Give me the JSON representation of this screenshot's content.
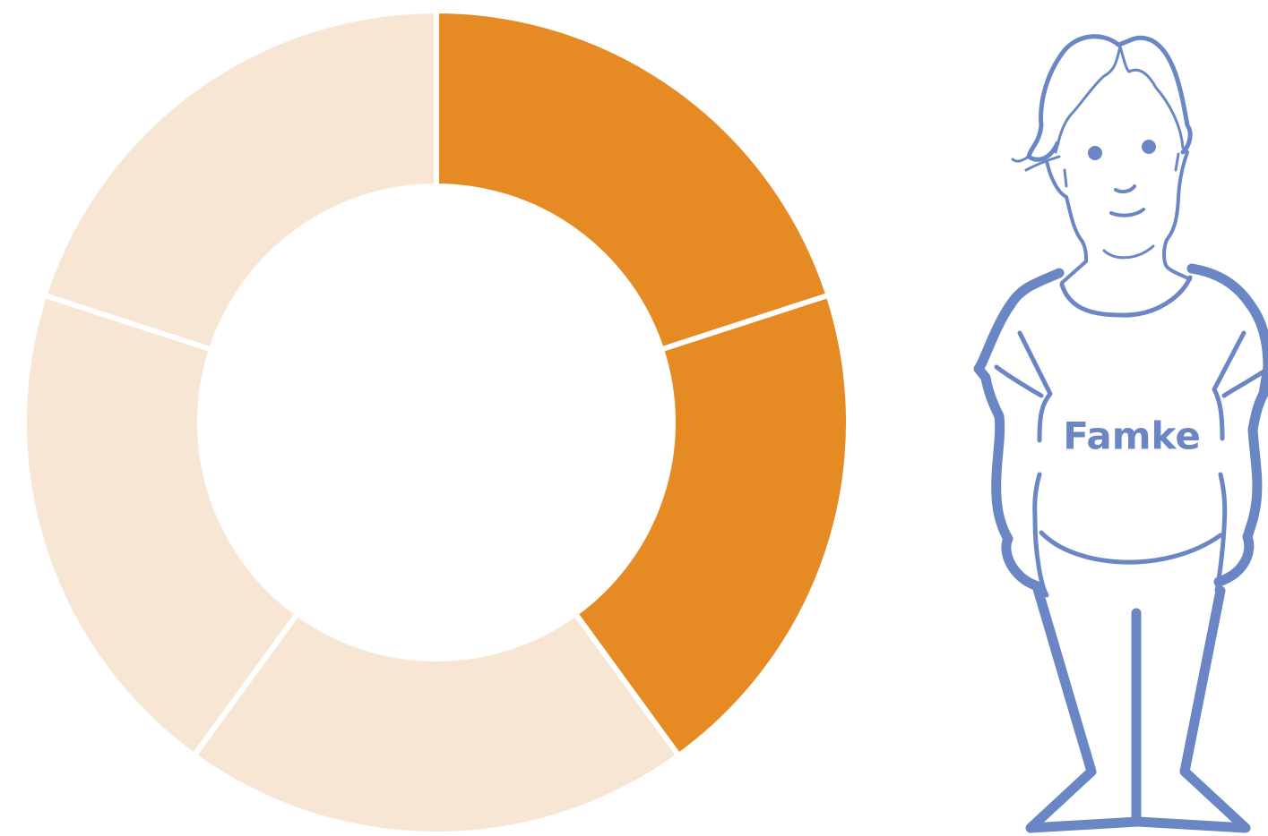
{
  "chart_data": {
    "type": "donut",
    "values": [
      20,
      20,
      20,
      20,
      20
    ],
    "colors": [
      "#e68a23",
      "#e68a23",
      "#f8e6d4",
      "#f8e6d4",
      "#f8e6d4"
    ]
  },
  "figure": {
    "label": "Famke",
    "color": "#6b86c4"
  }
}
